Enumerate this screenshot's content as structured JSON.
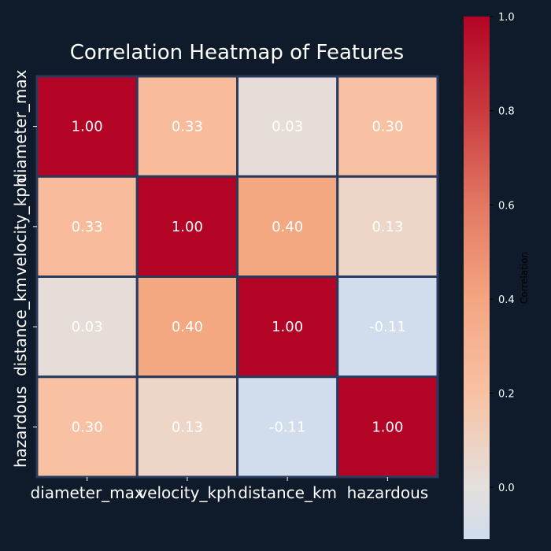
{
  "chart_data": {
    "type": "heatmap",
    "title": "Correlation Heatmap of Features",
    "x_labels": [
      "diameter_max",
      "velocity_kph",
      "distance_km",
      "hazardous"
    ],
    "y_labels": [
      "diameter_max",
      "velocity_kph",
      "distance_km",
      "hazardous"
    ],
    "values": [
      [
        1.0,
        0.33,
        0.03,
        0.3
      ],
      [
        0.33,
        1.0,
        0.4,
        0.13
      ],
      [
        0.03,
        0.4,
        1.0,
        -0.11
      ],
      [
        0.3,
        0.13,
        -0.11,
        1.0
      ]
    ],
    "value_format": "0.00",
    "colorbar": {
      "label": "Correlation",
      "range": [
        -0.11,
        1.0
      ],
      "ticks": [
        "0.0",
        "0.2",
        "0.4",
        "0.6",
        "0.8",
        "1.0"
      ],
      "tick_values": [
        0.0,
        0.2,
        0.4,
        0.6,
        0.8,
        1.0
      ],
      "colormap": "RdBu_r"
    },
    "cell_border_color": "#2a3a5c"
  }
}
